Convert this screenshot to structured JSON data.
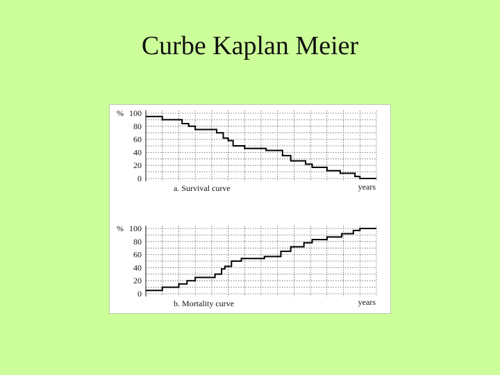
{
  "page": {
    "title": "Curbe Kaplan Meier"
  },
  "chart_data": [
    {
      "type": "line",
      "step": true,
      "title": "",
      "caption": "a.  Survival curve",
      "ylabel": "%",
      "xlabel": "years",
      "y_ticks": [
        "100",
        "80",
        "60",
        "40",
        "20",
        "0"
      ],
      "ylim": [
        0,
        100
      ],
      "xlim": [
        0,
        14
      ],
      "grid": true,
      "series": [
        {
          "x": [
            0,
            1,
            2.2,
            2.6,
            3,
            4.3,
            4.7,
            5,
            5.3,
            6,
            7.3,
            8.3,
            8.8,
            9.7,
            10.1,
            11,
            11.8,
            12.7,
            13,
            13.7
          ],
          "y": [
            95,
            90,
            84,
            80,
            75,
            70,
            62,
            58,
            50,
            46,
            43,
            35,
            27,
            22,
            17,
            12,
            8,
            3,
            0,
            0
          ]
        }
      ]
    },
    {
      "type": "line",
      "step": true,
      "title": "",
      "caption": "b.  Mortality curve",
      "ylabel": "%",
      "xlabel": "years",
      "y_ticks": [
        "100",
        "80",
        "60",
        "40",
        "20",
        "0"
      ],
      "ylim": [
        0,
        100
      ],
      "xlim": [
        0,
        14
      ],
      "grid": true,
      "series": [
        {
          "x": [
            0,
            1,
            2,
            2.5,
            3,
            4.2,
            4.6,
            4.8,
            5.2,
            5.8,
            7.2,
            8.2,
            8.8,
            9.6,
            10.1,
            11,
            11.9,
            12.6,
            13,
            13.7
          ],
          "y": [
            5,
            10,
            15,
            20,
            25,
            30,
            38,
            42,
            50,
            54,
            57,
            65,
            72,
            78,
            83,
            87,
            92,
            97,
            100,
            100
          ]
        }
      ]
    }
  ]
}
